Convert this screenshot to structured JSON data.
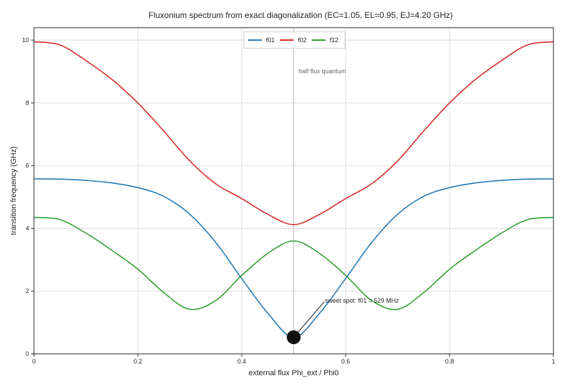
{
  "chart_data": {
    "type": "line",
    "title": "Fluxonium spectrum from exact diagonalization (EC=1.05, EL=0.95, EJ=4.20 GHz)",
    "xlabel": "external flux Phi_ext / Phi0",
    "ylabel": "transition frequency (GHz)",
    "xlim": [
      0,
      1
    ],
    "ylim": [
      0,
      10.4
    ],
    "x_ticks": [
      "0",
      "0.2",
      "0.4",
      "0.6",
      "0.8",
      "1"
    ],
    "y_ticks": [
      "0",
      "2",
      "4",
      "6",
      "8",
      "10"
    ],
    "grid": true,
    "legend_position": "top-center",
    "x": [
      0,
      0.05,
      0.1,
      0.15,
      0.2,
      0.25,
      0.3,
      0.35,
      0.4,
      0.45,
      0.5,
      0.55,
      0.6,
      0.65,
      0.7,
      0.75,
      0.8,
      0.85,
      0.9,
      0.95,
      1.0
    ],
    "series": [
      {
        "name": "f01",
        "color": "#1f77b4",
        "values": [
          5.58,
          5.57,
          5.53,
          5.45,
          5.3,
          5.02,
          4.45,
          3.55,
          2.4,
          1.3,
          0.53,
          1.3,
          2.4,
          3.55,
          4.45,
          5.02,
          5.3,
          5.45,
          5.53,
          5.57,
          5.58
        ]
      },
      {
        "name": "f02",
        "color": "#d62728",
        "values": [
          9.95,
          9.85,
          9.35,
          8.75,
          8.0,
          7.1,
          6.15,
          5.42,
          4.95,
          4.45,
          4.12,
          4.45,
          4.95,
          5.42,
          6.15,
          7.1,
          8.0,
          8.75,
          9.35,
          9.85,
          9.95
        ]
      },
      {
        "name": "f12",
        "color": "#2ca02c",
        "values": [
          4.35,
          4.28,
          3.85,
          3.3,
          2.7,
          1.95,
          1.42,
          1.7,
          2.5,
          3.2,
          3.6,
          3.2,
          2.5,
          1.7,
          1.42,
          1.95,
          2.7,
          3.3,
          3.85,
          4.28,
          4.35
        ]
      }
    ],
    "vline": {
      "x": 0.5,
      "label": "half flux quantum"
    },
    "marker": {
      "x": 0.5,
      "y": 0.529,
      "label": "sweet spot: f01 = 529 MHz",
      "text_x": 0.56,
      "text_y": 1.7
    }
  }
}
